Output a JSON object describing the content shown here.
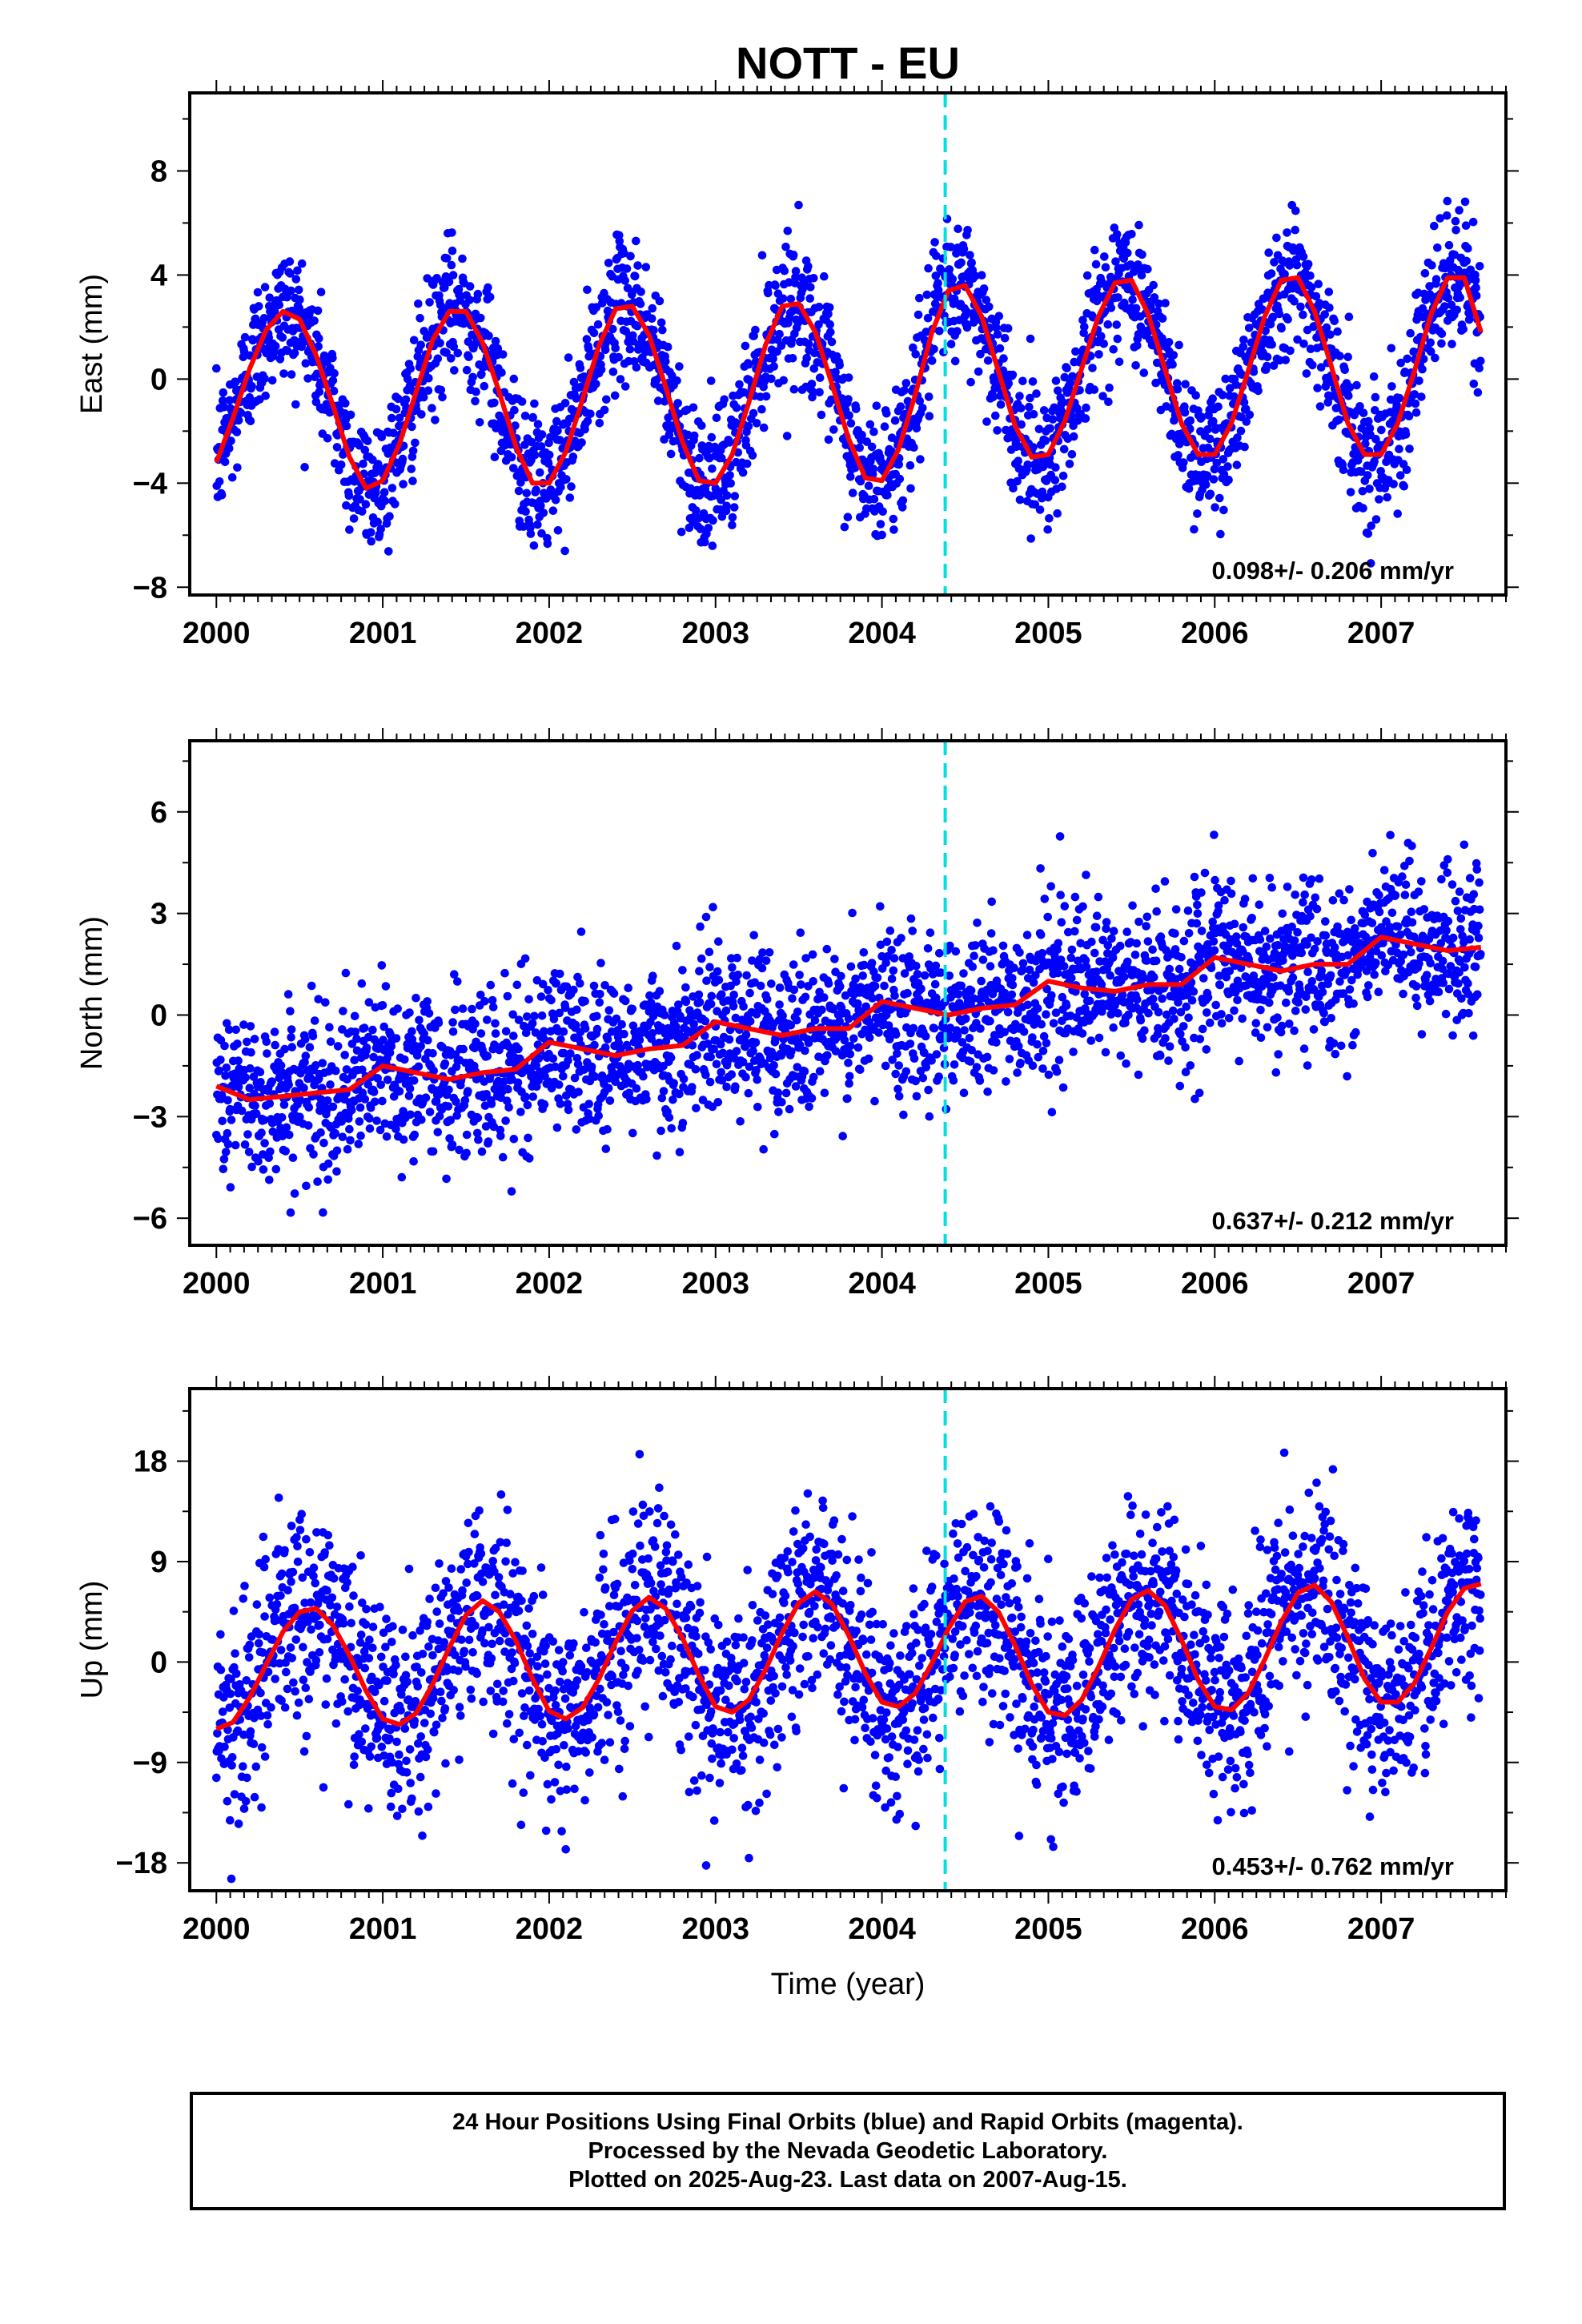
{
  "title": "NOTT - EU",
  "colors": {
    "points": "#0000ff",
    "fit": "#ff0000",
    "equipment_change_line": "#00e0e0",
    "frame": "#000000"
  },
  "xlabel": "Time (year)",
  "footer": {
    "line1": "24 Hour Positions Using Final Orbits (blue) and Rapid Orbits (magenta).",
    "line2": "Processed by the Nevada Geodetic Laboratory.",
    "line3": "Plotted on 2025-Aug-23. Last data on 2007-Aug-15."
  },
  "chart_data": [
    {
      "type": "scatter",
      "component": "East",
      "ylabel": "East (mm)",
      "xlim": [
        1999.84,
        2007.75
      ],
      "ylim": [
        -8.3,
        11.0
      ],
      "yticks": [
        -8,
        -4,
        0,
        4,
        8
      ],
      "xticks": [
        2000,
        2001,
        2002,
        2003,
        2004,
        2005,
        2006,
        2007
      ],
      "xtick_labels": [
        "2000",
        "2001",
        "2002",
        "2003",
        "2004",
        "2005",
        "2006",
        "2007"
      ],
      "ytick_labels": [
        "−8",
        "−4",
        "0",
        "4",
        "8"
      ],
      "rate_label": "0.098+/- 0.206 mm/yr",
      "equipment_change_x": 2004.38,
      "fit_points": [
        [
          2000.0,
          -3.2
        ],
        [
          2000.1,
          -1.5
        ],
        [
          2000.2,
          0.4
        ],
        [
          2000.3,
          1.9
        ],
        [
          2000.4,
          2.6
        ],
        [
          2000.5,
          2.3
        ],
        [
          2000.6,
          0.9
        ],
        [
          2000.7,
          -1.0
        ],
        [
          2000.8,
          -3.0
        ],
        [
          2000.9,
          -4.2
        ],
        [
          2001.0,
          -3.9
        ],
        [
          2001.1,
          -2.5
        ],
        [
          2001.2,
          -0.5
        ],
        [
          2001.3,
          1.5
        ],
        [
          2001.4,
          2.6
        ],
        [
          2001.5,
          2.6
        ],
        [
          2001.6,
          1.4
        ],
        [
          2001.7,
          -0.5
        ],
        [
          2001.8,
          -2.6
        ],
        [
          2001.9,
          -4.0
        ],
        [
          2002.0,
          -4.0
        ],
        [
          2002.1,
          -2.8
        ],
        [
          2002.2,
          -0.8
        ],
        [
          2002.3,
          1.3
        ],
        [
          2002.4,
          2.7
        ],
        [
          2002.5,
          2.8
        ],
        [
          2002.6,
          1.7
        ],
        [
          2002.7,
          -0.3
        ],
        [
          2002.8,
          -2.4
        ],
        [
          2002.9,
          -3.9
        ],
        [
          2003.0,
          -4.0
        ],
        [
          2003.1,
          -2.9
        ],
        [
          2003.2,
          -0.9
        ],
        [
          2003.3,
          1.3
        ],
        [
          2003.4,
          2.8
        ],
        [
          2003.5,
          2.9
        ],
        [
          2003.6,
          1.8
        ],
        [
          2003.7,
          -0.2
        ],
        [
          2003.8,
          -2.3
        ],
        [
          2003.9,
          -3.8
        ],
        [
          2004.0,
          -3.9
        ],
        [
          2004.1,
          -2.7
        ],
        [
          2004.2,
          -0.6
        ],
        [
          2004.3,
          1.8
        ],
        [
          2004.4,
          3.4
        ],
        [
          2004.5,
          3.6
        ],
        [
          2004.6,
          2.4
        ],
        [
          2004.7,
          0.3
        ],
        [
          2004.8,
          -1.8
        ],
        [
          2004.9,
          -3.0
        ],
        [
          2005.0,
          -2.9
        ],
        [
          2005.1,
          -1.6
        ],
        [
          2005.2,
          0.4
        ],
        [
          2005.3,
          2.4
        ],
        [
          2005.4,
          3.7
        ],
        [
          2005.5,
          3.8
        ],
        [
          2005.6,
          2.5
        ],
        [
          2005.7,
          0.4
        ],
        [
          2005.8,
          -1.7
        ],
        [
          2005.9,
          -2.9
        ],
        [
          2006.0,
          -2.9
        ],
        [
          2006.1,
          -1.7
        ],
        [
          2006.2,
          0.3
        ],
        [
          2006.3,
          2.4
        ],
        [
          2006.4,
          3.8
        ],
        [
          2006.5,
          3.9
        ],
        [
          2006.6,
          2.6
        ],
        [
          2006.7,
          0.5
        ],
        [
          2006.8,
          -1.7
        ],
        [
          2006.9,
          -2.9
        ],
        [
          2007.0,
          -2.9
        ],
        [
          2007.1,
          -1.7
        ],
        [
          2007.2,
          0.3
        ],
        [
          2007.3,
          2.5
        ],
        [
          2007.4,
          3.9
        ],
        [
          2007.5,
          3.9
        ],
        [
          2007.6,
          1.8
        ]
      ]
    },
    {
      "type": "scatter",
      "component": "North",
      "ylabel": "North (mm)",
      "xlim": [
        1999.84,
        2007.75
      ],
      "ylim": [
        -6.8,
        8.1
      ],
      "yticks": [
        -6,
        -3,
        0,
        3,
        6
      ],
      "xticks": [
        2000,
        2001,
        2002,
        2003,
        2004,
        2005,
        2006,
        2007
      ],
      "xtick_labels": [
        "2000",
        "2001",
        "2002",
        "2003",
        "2004",
        "2005",
        "2006",
        "2007"
      ],
      "ytick_labels": [
        "−6",
        "−3",
        "0",
        "3",
        "6"
      ],
      "rate_label": "0.637+/- 0.212 mm/yr",
      "equipment_change_x": 2004.38,
      "fit_points": [
        [
          2000.0,
          -2.1
        ],
        [
          2000.2,
          -2.5
        ],
        [
          2000.4,
          -2.4
        ],
        [
          2000.6,
          -2.3
        ],
        [
          2000.8,
          -2.2
        ],
        [
          2001.0,
          -1.5
        ],
        [
          2001.2,
          -1.7
        ],
        [
          2001.4,
          -1.9
        ],
        [
          2001.6,
          -1.7
        ],
        [
          2001.8,
          -1.6
        ],
        [
          2002.0,
          -0.8
        ],
        [
          2002.2,
          -1.0
        ],
        [
          2002.4,
          -1.2
        ],
        [
          2002.6,
          -1.0
        ],
        [
          2002.8,
          -0.9
        ],
        [
          2003.0,
          -0.2
        ],
        [
          2003.2,
          -0.4
        ],
        [
          2003.4,
          -0.6
        ],
        [
          2003.6,
          -0.4
        ],
        [
          2003.8,
          -0.4
        ],
        [
          2004.0,
          0.4
        ],
        [
          2004.2,
          0.2
        ],
        [
          2004.4,
          0.0
        ],
        [
          2004.6,
          0.2
        ],
        [
          2004.8,
          0.3
        ],
        [
          2005.0,
          1.0
        ],
        [
          2005.2,
          0.8
        ],
        [
          2005.4,
          0.7
        ],
        [
          2005.6,
          0.9
        ],
        [
          2005.8,
          0.9
        ],
        [
          2006.0,
          1.7
        ],
        [
          2006.2,
          1.5
        ],
        [
          2006.4,
          1.3
        ],
        [
          2006.6,
          1.5
        ],
        [
          2006.8,
          1.5
        ],
        [
          2007.0,
          2.3
        ],
        [
          2007.2,
          2.1
        ],
        [
          2007.4,
          1.9
        ],
        [
          2007.6,
          2.0
        ]
      ]
    },
    {
      "type": "scatter",
      "component": "Up",
      "ylabel": "Up (mm)",
      "xlim": [
        1999.84,
        2007.75
      ],
      "ylim": [
        -20.5,
        24.5
      ],
      "yticks": [
        -18,
        -9,
        0,
        9,
        18
      ],
      "xticks": [
        2000,
        2001,
        2002,
        2003,
        2004,
        2005,
        2006,
        2007
      ],
      "xtick_labels": [
        "2000",
        "2001",
        "2002",
        "2003",
        "2004",
        "2005",
        "2006",
        "2007"
      ],
      "ytick_labels": [
        "−18",
        "−9",
        "0",
        "9",
        "18"
      ],
      "rate_label": "0.453+/- 0.762 mm/yr",
      "equipment_change_x": 2004.38,
      "fit_points": [
        [
          2000.0,
          -6.0
        ],
        [
          2000.1,
          -5.4
        ],
        [
          2000.2,
          -3.2
        ],
        [
          2000.3,
          -0.2
        ],
        [
          2000.4,
          2.7
        ],
        [
          2000.5,
          4.5
        ],
        [
          2000.6,
          4.8
        ],
        [
          2000.7,
          3.3
        ],
        [
          2000.8,
          0.6
        ],
        [
          2000.9,
          -2.6
        ],
        [
          2001.0,
          -5.1
        ],
        [
          2001.1,
          -5.6
        ],
        [
          2001.2,
          -4.6
        ],
        [
          2001.3,
          -2.0
        ],
        [
          2001.4,
          1.3
        ],
        [
          2001.5,
          4.2
        ],
        [
          2001.6,
          5.5
        ],
        [
          2001.7,
          4.5
        ],
        [
          2001.8,
          1.9
        ],
        [
          2001.9,
          -1.5
        ],
        [
          2002.0,
          -4.4
        ],
        [
          2002.1,
          -5.1
        ],
        [
          2002.2,
          -4.1
        ],
        [
          2002.3,
          -1.5
        ],
        [
          2002.4,
          1.8
        ],
        [
          2002.5,
          4.6
        ],
        [
          2002.6,
          5.8
        ],
        [
          2002.7,
          4.8
        ],
        [
          2002.8,
          2.2
        ],
        [
          2002.9,
          -1.2
        ],
        [
          2003.0,
          -4.0
        ],
        [
          2003.1,
          -4.5
        ],
        [
          2003.2,
          -3.4
        ],
        [
          2003.3,
          -0.7
        ],
        [
          2003.4,
          2.6
        ],
        [
          2003.5,
          5.3
        ],
        [
          2003.6,
          6.3
        ],
        [
          2003.7,
          5.2
        ],
        [
          2003.8,
          2.4
        ],
        [
          2003.9,
          -1.0
        ],
        [
          2004.0,
          -3.6
        ],
        [
          2004.1,
          -4.0
        ],
        [
          2004.2,
          -2.8
        ],
        [
          2004.3,
          -0.1
        ],
        [
          2004.4,
          3.0
        ],
        [
          2004.5,
          5.4
        ],
        [
          2004.6,
          5.9
        ],
        [
          2004.7,
          4.5
        ],
        [
          2004.8,
          1.5
        ],
        [
          2004.9,
          -2.0
        ],
        [
          2005.0,
          -4.5
        ],
        [
          2005.1,
          -4.8
        ],
        [
          2005.2,
          -3.4
        ],
        [
          2005.3,
          -0.5
        ],
        [
          2005.4,
          2.9
        ],
        [
          2005.5,
          5.6
        ],
        [
          2005.6,
          6.4
        ],
        [
          2005.7,
          5.1
        ],
        [
          2005.8,
          2.0
        ],
        [
          2005.9,
          -1.6
        ],
        [
          2006.0,
          -4.0
        ],
        [
          2006.1,
          -4.3
        ],
        [
          2006.2,
          -2.8
        ],
        [
          2006.3,
          0.2
        ],
        [
          2006.4,
          3.6
        ],
        [
          2006.5,
          6.2
        ],
        [
          2006.6,
          6.9
        ],
        [
          2006.7,
          5.4
        ],
        [
          2006.8,
          2.2
        ],
        [
          2006.9,
          -1.5
        ],
        [
          2007.0,
          -3.6
        ],
        [
          2007.1,
          -3.6
        ],
        [
          2007.2,
          -1.9
        ],
        [
          2007.3,
          1.2
        ],
        [
          2007.4,
          4.5
        ],
        [
          2007.5,
          6.6
        ],
        [
          2007.6,
          7.0
        ]
      ]
    }
  ]
}
